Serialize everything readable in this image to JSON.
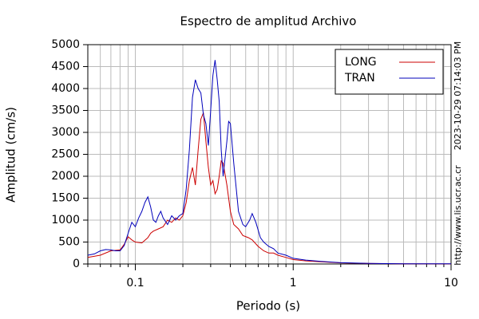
{
  "chart_data": {
    "type": "line",
    "title": "Espectro de amplitud Archivo",
    "xlabel": "Periodo (s)",
    "ylabel": "Amplitud (cm/s)",
    "annotations": [
      "2023-10-29 07:14:03 PM",
      "http://www.lis.ucr.ac.cr"
    ],
    "xscale": "log",
    "xlim": [
      0.05,
      10
    ],
    "ylim": [
      0,
      5000
    ],
    "xticks": [
      0.1,
      1,
      10
    ],
    "xminorticks": [
      0.05,
      0.06,
      0.07,
      0.08,
      0.09,
      0.2,
      0.3,
      0.4,
      0.5,
      0.6,
      0.7,
      0.8,
      0.9,
      2,
      3,
      4,
      5,
      6,
      7,
      8,
      9
    ],
    "yticks": [
      0,
      500,
      1000,
      1500,
      2000,
      2500,
      3000,
      3500,
      4000,
      4500,
      5000
    ],
    "grid": true,
    "legend": "upper right",
    "series": [
      {
        "name": "LONG",
        "color": "#cc0000",
        "x": [
          0.05,
          0.06,
          0.07,
          0.08,
          0.085,
          0.09,
          0.095,
          0.1,
          0.11,
          0.12,
          0.125,
          0.13,
          0.14,
          0.15,
          0.16,
          0.17,
          0.18,
          0.19,
          0.2,
          0.21,
          0.22,
          0.23,
          0.24,
          0.25,
          0.26,
          0.27,
          0.28,
          0.29,
          0.3,
          0.31,
          0.32,
          0.33,
          0.34,
          0.35,
          0.36,
          0.38,
          0.4,
          0.42,
          0.45,
          0.48,
          0.52,
          0.55,
          0.6,
          0.65,
          0.7,
          0.75,
          0.8,
          0.9,
          1.0,
          1.2,
          1.5,
          2,
          3,
          5,
          10
        ],
        "values": [
          150,
          200,
          300,
          320,
          450,
          620,
          550,
          500,
          480,
          600,
          700,
          750,
          800,
          850,
          1000,
          950,
          1050,
          1000,
          1100,
          1400,
          1900,
          2200,
          1800,
          2600,
          3300,
          3450,
          2800,
          2200,
          1800,
          1900,
          1600,
          1700,
          2000,
          2350,
          2300,
          1800,
          1200,
          900,
          800,
          650,
          600,
          550,
          400,
          300,
          250,
          250,
          200,
          150,
          100,
          70,
          50,
          25,
          10,
          4,
          2
        ]
      },
      {
        "name": "TRAN",
        "color": "#0000bb",
        "x": [
          0.05,
          0.055,
          0.06,
          0.065,
          0.07,
          0.075,
          0.08,
          0.085,
          0.09,
          0.095,
          0.1,
          0.105,
          0.11,
          0.115,
          0.12,
          0.125,
          0.13,
          0.135,
          0.14,
          0.145,
          0.15,
          0.16,
          0.17,
          0.18,
          0.19,
          0.2,
          0.21,
          0.22,
          0.23,
          0.24,
          0.25,
          0.26,
          0.27,
          0.28,
          0.29,
          0.3,
          0.31,
          0.32,
          0.33,
          0.34,
          0.35,
          0.36,
          0.38,
          0.39,
          0.4,
          0.42,
          0.45,
          0.48,
          0.5,
          0.53,
          0.55,
          0.58,
          0.62,
          0.65,
          0.7,
          0.75,
          0.8,
          0.9,
          1.0,
          1.2,
          1.5,
          2.0,
          3,
          5,
          10
        ],
        "values": [
          200,
          230,
          300,
          330,
          320,
          300,
          300,
          420,
          700,
          950,
          850,
          1050,
          1200,
          1400,
          1530,
          1300,
          1000,
          950,
          1100,
          1200,
          1050,
          900,
          1100,
          1000,
          1100,
          1150,
          1700,
          2600,
          3800,
          4200,
          4000,
          3900,
          3400,
          3200,
          2700,
          3500,
          4300,
          4650,
          4200,
          3700,
          2600,
          2000,
          2800,
          3250,
          3200,
          2300,
          1200,
          900,
          850,
          1000,
          1150,
          950,
          600,
          500,
          400,
          350,
          250,
          200,
          130,
          90,
          60,
          30,
          15,
          5,
          3
        ]
      }
    ]
  }
}
